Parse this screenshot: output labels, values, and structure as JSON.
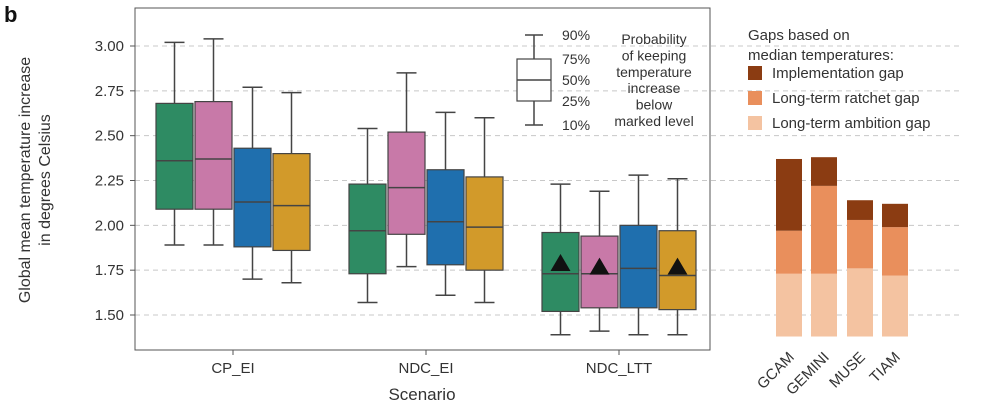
{
  "panel_label": "b",
  "colors": {
    "green": "#2e8b63",
    "pink": "#c879a8",
    "blue": "#1f6fae",
    "orange": "#d29a2a",
    "gap_implementation": "#8b3c12",
    "gap_ratchet": "#e98f5c",
    "gap_ambition": "#f4c3a1"
  },
  "chart_data": [
    {
      "type": "box",
      "xlabel": "Scenario",
      "ylabel_lines": [
        "Global mean temperature increase",
        "in degrees Celsius"
      ],
      "ylim": [
        1.38,
        3.17
      ],
      "yticks": [
        "1.50",
        "1.75",
        "2.00",
        "2.25",
        "2.50",
        "2.75",
        "3.00"
      ],
      "grid": "horizontal dashed",
      "categories": [
        "CP_EI",
        "NDC_EI",
        "NDC_LTT"
      ],
      "box_colors": [
        "green",
        "pink",
        "blue",
        "orange"
      ],
      "boxes": [
        [
          {
            "p10": 1.89,
            "p25": 2.09,
            "p50": 2.36,
            "p75": 2.68,
            "p90": 3.02
          },
          {
            "p10": 1.89,
            "p25": 2.09,
            "p50": 2.37,
            "p75": 2.69,
            "p90": 3.04
          },
          {
            "p10": 1.7,
            "p25": 1.88,
            "p50": 2.13,
            "p75": 2.43,
            "p90": 2.77
          },
          {
            "p10": 1.68,
            "p25": 1.86,
            "p50": 2.11,
            "p75": 2.4,
            "p90": 2.74
          }
        ],
        [
          {
            "p10": 1.57,
            "p25": 1.73,
            "p50": 1.97,
            "p75": 2.23,
            "p90": 2.54
          },
          {
            "p10": 1.77,
            "p25": 1.95,
            "p50": 2.21,
            "p75": 2.52,
            "p90": 2.85
          },
          {
            "p10": 1.61,
            "p25": 1.78,
            "p50": 2.02,
            "p75": 2.31,
            "p90": 2.63
          },
          {
            "p10": 1.57,
            "p25": 1.75,
            "p50": 1.99,
            "p75": 2.27,
            "p90": 2.6
          }
        ],
        [
          {
            "p10": 1.39,
            "p25": 1.52,
            "p50": 1.73,
            "p75": 1.96,
            "p90": 2.23
          },
          {
            "p10": 1.41,
            "p25": 1.54,
            "p50": 1.73,
            "p75": 1.94,
            "p90": 2.19
          },
          {
            "p10": 1.39,
            "p25": 1.54,
            "p50": 1.76,
            "p75": 2.0,
            "p90": 2.28
          },
          {
            "p10": 1.39,
            "p25": 1.53,
            "p50": 1.72,
            "p75": 1.97,
            "p90": 2.26
          }
        ]
      ],
      "triangles": [
        {
          "category": 2,
          "box": 0,
          "value": 1.79
        },
        {
          "category": 2,
          "box": 1,
          "value": 1.77
        },
        {
          "category": 2,
          "box": 3,
          "value": 1.77
        }
      ],
      "key": {
        "labels": [
          "90%",
          "75%",
          "50%",
          "25%",
          "10%"
        ],
        "description_lines": [
          "Probability",
          "of keeping",
          "temperature",
          "increase",
          "below",
          "marked level"
        ]
      }
    },
    {
      "type": "bar",
      "stacked": true,
      "legend_title_lines": [
        "Gaps based on",
        "median temperatures:"
      ],
      "categories": [
        "GCAM",
        "GEMINI",
        "MUSE",
        "TIAM"
      ],
      "base": 1.38,
      "series": [
        {
          "name": "Long-term ambition gap",
          "color": "gap_ambition",
          "values": [
            1.73,
            1.73,
            1.76,
            1.72
          ]
        },
        {
          "name": "Long-term ratchet gap",
          "color": "gap_ratchet",
          "values": [
            1.97,
            2.22,
            2.03,
            1.99
          ]
        },
        {
          "name": "Implementation gap",
          "color": "gap_implementation",
          "values": [
            2.37,
            2.38,
            2.14,
            2.12
          ]
        }
      ],
      "legend_order": [
        "Implementation gap",
        "Long-term ratchet gap",
        "Long-term ambition gap"
      ]
    }
  ]
}
